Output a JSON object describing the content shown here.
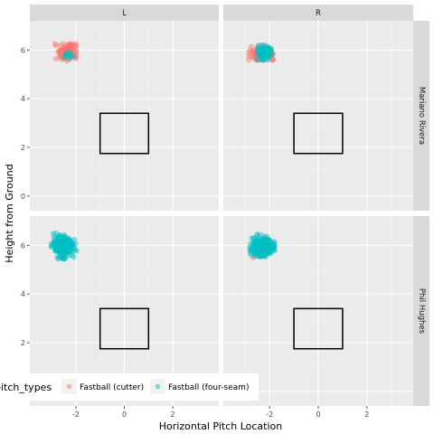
{
  "chart_data": {
    "type": "scatter",
    "xlabel": "Horizontal Pitch Location",
    "ylabel": "Height from Ground",
    "xlim": [
      -3.9,
      3.9
    ],
    "ylim": [
      -0.6,
      7.2
    ],
    "x_ticks": [
      -2,
      0,
      2
    ],
    "y_ticks": [
      0,
      2,
      4,
      6
    ],
    "col_facets": [
      "L",
      "R"
    ],
    "row_facets": [
      "Mariano Rivera",
      "Phil Hughes"
    ],
    "strike_zone": {
      "x": [
        -1.0,
        1.0
      ],
      "y": [
        1.75,
        3.4
      ]
    },
    "legend": {
      "title": "pitch_types",
      "position": "bottom-left",
      "entries": [
        {
          "label": "Fastball (cutter)",
          "color": "#F8766D"
        },
        {
          "label": "Fastball (four-seam)",
          "color": "#00BFC4"
        }
      ]
    },
    "series": [
      {
        "name": "Fastball (cutter)",
        "color": "#F8766D",
        "values": [
          {
            "pitcher": "Mariano Rivera",
            "stand": "L",
            "x": [
              -2.4,
              -3.0,
              -2.0
            ],
            "y": [
              5.9,
              5.5,
              6.25
            ],
            "n": 120
          },
          {
            "pitcher": "Mariano Rivera",
            "stand": "R",
            "x": [
              -2.3,
              -2.85,
              -1.75
            ],
            "y": [
              5.85,
              5.6,
              6.2
            ],
            "n": 110
          },
          {
            "pitcher": "Phil Hughes",
            "stand": "L",
            "x": [
              -2.6,
              -3.0,
              -2.3
            ],
            "y": [
              5.8,
              5.6,
              6.0
            ],
            "n": 8
          },
          {
            "pitcher": "Phil Hughes",
            "stand": "R",
            "x": [
              -2.5,
              -2.8,
              -2.2
            ],
            "y": [
              5.75,
              5.5,
              6.0
            ],
            "n": 8
          }
        ]
      },
      {
        "name": "Fastball (four-seam)",
        "color": "#00BFC4",
        "values": [
          {
            "pitcher": "Mariano Rivera",
            "stand": "L",
            "x": [
              -2.3,
              -2.6,
              -2.1
            ],
            "y": [
              5.8,
              5.6,
              5.95
            ],
            "n": 12
          },
          {
            "pitcher": "Mariano Rivera",
            "stand": "R",
            "x": [
              -2.2,
              -2.5,
              -1.9
            ],
            "y": [
              5.9,
              5.6,
              6.25
            ],
            "n": 90
          },
          {
            "pitcher": "Phil Hughes",
            "stand": "L",
            "x": [
              -2.5,
              -3.0,
              -1.95
            ],
            "y": [
              5.95,
              5.45,
              6.5
            ],
            "n": 200
          },
          {
            "pitcher": "Phil Hughes",
            "stand": "R",
            "x": [
              -2.3,
              -2.8,
              -1.8
            ],
            "y": [
              5.95,
              5.55,
              6.45
            ],
            "n": 200
          }
        ]
      }
    ]
  }
}
